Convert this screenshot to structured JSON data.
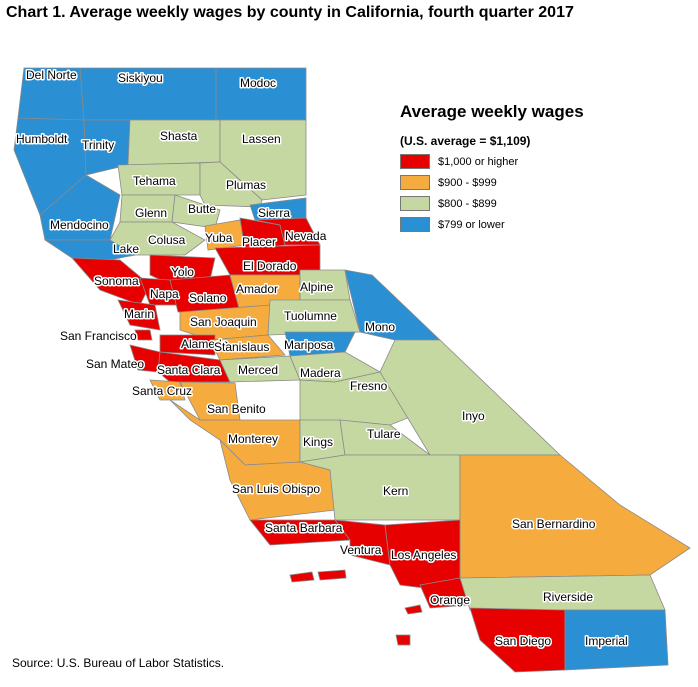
{
  "title": "Chart 1. Average weekly wages by county in California, fourth quarter 2017",
  "source": "Source: U.S. Bureau of Labor Statistics.",
  "legend": {
    "title": "Average weekly wages",
    "subtitle": "(U.S. average = $1,109)",
    "items": [
      {
        "key": "high",
        "label": "$1,000 or higher",
        "color": "#e60000"
      },
      {
        "key": "midhigh",
        "label": "$900 - $999",
        "color": "#f6ab3f"
      },
      {
        "key": "mid",
        "label": "$800 - $899",
        "color": "#c6d8a1"
      },
      {
        "key": "low",
        "label": "$799 or lower",
        "color": "#2b8fd4"
      }
    ]
  },
  "counties": [
    {
      "name": "Del Norte",
      "category": "low"
    },
    {
      "name": "Siskiyou",
      "category": "low"
    },
    {
      "name": "Modoc",
      "category": "low"
    },
    {
      "name": "Humboldt",
      "category": "low"
    },
    {
      "name": "Trinity",
      "category": "low"
    },
    {
      "name": "Shasta",
      "category": "mid"
    },
    {
      "name": "Lassen",
      "category": "mid"
    },
    {
      "name": "Tehama",
      "category": "mid"
    },
    {
      "name": "Plumas",
      "category": "mid"
    },
    {
      "name": "Mendocino",
      "category": "low"
    },
    {
      "name": "Glenn",
      "category": "mid"
    },
    {
      "name": "Butte",
      "category": "mid"
    },
    {
      "name": "Sierra",
      "category": "low"
    },
    {
      "name": "Lake",
      "category": "low"
    },
    {
      "name": "Colusa",
      "category": "mid"
    },
    {
      "name": "Yuba",
      "category": "midhigh"
    },
    {
      "name": "Placer",
      "category": "high"
    },
    {
      "name": "Nevada",
      "category": "high"
    },
    {
      "name": "Sonoma",
      "category": "high"
    },
    {
      "name": "Yolo",
      "category": "high"
    },
    {
      "name": "El Dorado",
      "category": "high"
    },
    {
      "name": "Napa",
      "category": "high"
    },
    {
      "name": "Solano",
      "category": "high"
    },
    {
      "name": "Amador",
      "category": "midhigh"
    },
    {
      "name": "Alpine",
      "category": "mid"
    },
    {
      "name": "Marin",
      "category": "high"
    },
    {
      "name": "San Joaquin",
      "category": "midhigh"
    },
    {
      "name": "Tuolumne",
      "category": "mid"
    },
    {
      "name": "Mono",
      "category": "low"
    },
    {
      "name": "San Francisco",
      "category": "high"
    },
    {
      "name": "Alameda",
      "category": "high"
    },
    {
      "name": "Stanislaus",
      "category": "midhigh"
    },
    {
      "name": "Mariposa",
      "category": "low"
    },
    {
      "name": "San Mateo",
      "category": "high"
    },
    {
      "name": "Santa Clara",
      "category": "high"
    },
    {
      "name": "Merced",
      "category": "mid"
    },
    {
      "name": "Madera",
      "category": "mid"
    },
    {
      "name": "Santa Cruz",
      "category": "midhigh"
    },
    {
      "name": "Fresno",
      "category": "mid"
    },
    {
      "name": "San Benito",
      "category": "midhigh"
    },
    {
      "name": "Inyo",
      "category": "mid"
    },
    {
      "name": "Monterey",
      "category": "midhigh"
    },
    {
      "name": "Kings",
      "category": "mid"
    },
    {
      "name": "Tulare",
      "category": "mid"
    },
    {
      "name": "San Luis Obispo",
      "category": "midhigh"
    },
    {
      "name": "Kern",
      "category": "mid"
    },
    {
      "name": "San Bernardino",
      "category": "midhigh"
    },
    {
      "name": "Santa Barbara",
      "category": "high"
    },
    {
      "name": "Ventura",
      "category": "high"
    },
    {
      "name": "Los Angeles",
      "category": "high"
    },
    {
      "name": "Orange",
      "category": "high"
    },
    {
      "name": "Riverside",
      "category": "mid"
    },
    {
      "name": "San Diego",
      "category": "high"
    },
    {
      "name": "Imperial",
      "category": "low"
    }
  ]
}
